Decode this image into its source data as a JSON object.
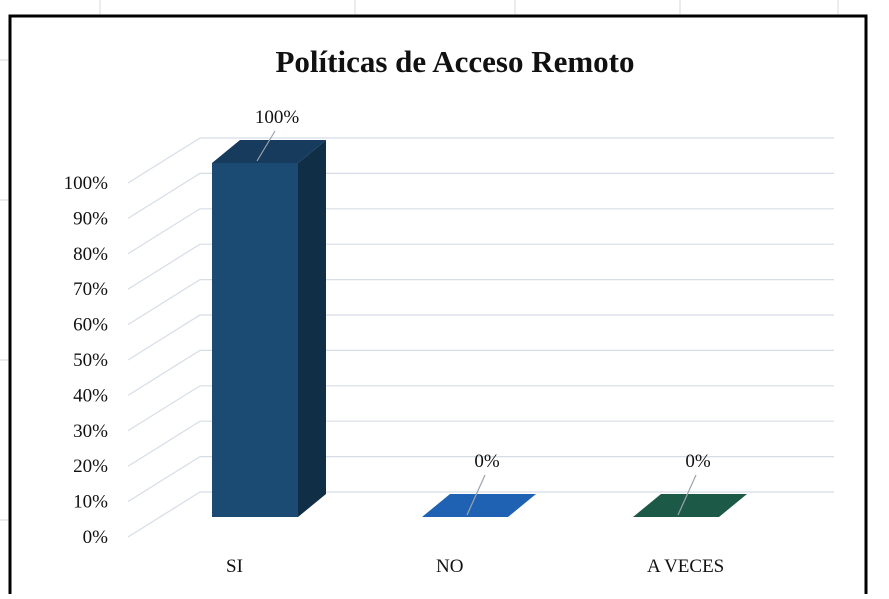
{
  "chart_data": {
    "type": "bar",
    "title": "Políticas de Acceso Remoto",
    "categories": [
      "SI",
      "NO",
      "A VECES"
    ],
    "values": [
      100,
      0,
      0
    ],
    "value_labels": [
      "100%",
      "0%",
      "0%"
    ],
    "y_ticks": [
      "0%",
      "10%",
      "20%",
      "30%",
      "40%",
      "50%",
      "60%",
      "70%",
      "80%",
      "90%",
      "100%"
    ],
    "ylim": [
      0,
      100
    ],
    "xlabel": "",
    "ylabel": "",
    "grid": true,
    "legend": "none",
    "style": "3d-column",
    "colors": {
      "SI": "#1b4a73",
      "NO": "#1f62b3",
      "A VECES": "#1c5a47",
      "gridline": "#d6dde6",
      "frame": "#000000",
      "leader": "#9aa3ad",
      "text": "#111111"
    }
  }
}
